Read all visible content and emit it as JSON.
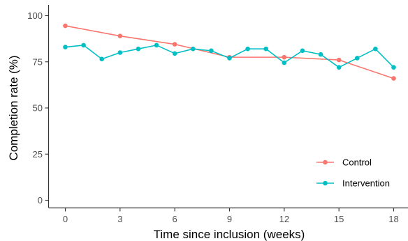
{
  "chart_data": {
    "type": "line",
    "xlabel": "Time since inclusion (weeks)",
    "ylabel": "Completion rate (%)",
    "xlim": [
      0,
      18
    ],
    "ylim": [
      0,
      100
    ],
    "xticks": [
      0,
      3,
      6,
      9,
      12,
      15,
      18
    ],
    "yticks": [
      0,
      25,
      50,
      75,
      100
    ],
    "grid": false,
    "legend_position": "bottom-right",
    "series": [
      {
        "name": "Control",
        "color": "#F8766D",
        "x": [
          0,
          3,
          6,
          9,
          12,
          15,
          18
        ],
        "y": [
          94.5,
          89,
          84.5,
          77.5,
          77.5,
          76,
          66
        ]
      },
      {
        "name": "Intervention",
        "color": "#00BFC4",
        "x": [
          0,
          1,
          2,
          3,
          4,
          5,
          6,
          7,
          8,
          9,
          10,
          11,
          12,
          13,
          14,
          15,
          16,
          17,
          18
        ],
        "y": [
          83,
          84,
          76.5,
          80,
          82,
          84,
          79.5,
          82,
          81,
          77,
          82,
          82,
          74.5,
          81,
          79,
          72,
          77,
          82,
          72
        ]
      }
    ]
  }
}
